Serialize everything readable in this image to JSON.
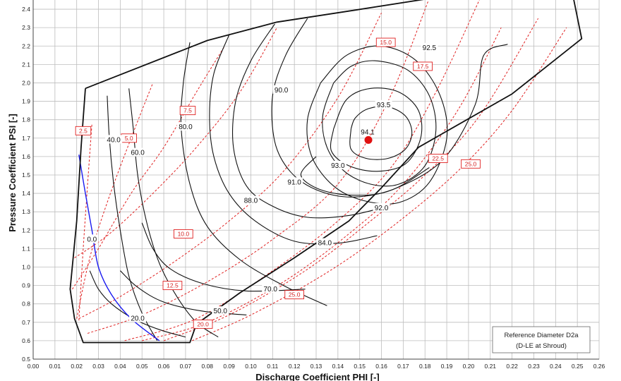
{
  "chart_data": {
    "type": "line",
    "title": "",
    "xlabel": "Discharge Coefficient PHI [-]",
    "ylabel": "Pressure Coefficient PSI [-]",
    "xlim": [
      0.0,
      0.26
    ],
    "ylim": [
      0.5,
      2.45
    ],
    "grid": true,
    "x_ticks": [
      "0.00",
      "0.01",
      "0.02",
      "0.03",
      "0.04",
      "0.05",
      "0.06",
      "0.07",
      "0.08",
      "0.09",
      "0.10",
      "0.11",
      "0.12",
      "0.13",
      "0.14",
      "0.15",
      "0.16",
      "0.17",
      "0.18",
      "0.19",
      "0.20",
      "0.21",
      "0.22",
      "0.23",
      "0.24",
      "0.25",
      "0.26"
    ],
    "y_ticks": [
      "0.5",
      "0.6",
      "0.7",
      "0.8",
      "0.9",
      "1.0",
      "1.1",
      "1.2",
      "1.3",
      "1.4",
      "1.5",
      "1.6",
      "1.7",
      "1.8",
      "1.9",
      "2.0",
      "2.1",
      "2.2",
      "2.3",
      "2.4"
    ],
    "colors": {
      "efficiency": "#111111",
      "speedline": "#e02020",
      "zero_line": "#1a1af0",
      "peak": "#e01010"
    },
    "boundary": [
      [
        0.024,
        1.97
      ],
      [
        0.08,
        2.23
      ],
      [
        0.112,
        2.33
      ],
      [
        0.145,
        2.39
      ],
      [
        0.183,
        2.46
      ],
      [
        0.247,
        2.53
      ],
      [
        0.252,
        2.24
      ],
      [
        0.22,
        1.94
      ],
      [
        0.177,
        1.65
      ],
      [
        0.16,
        1.43
      ],
      [
        0.145,
        1.25
      ],
      [
        0.12,
        1.05
      ],
      [
        0.095,
        0.86
      ],
      [
        0.075,
        0.69
      ],
      [
        0.072,
        0.59
      ],
      [
        0.023,
        0.59
      ],
      [
        0.019,
        0.72
      ],
      [
        0.017,
        0.88
      ],
      [
        0.02,
        1.25
      ],
      [
        0.022,
        1.65
      ],
      [
        0.024,
        1.97
      ]
    ],
    "peak": {
      "x": 0.154,
      "y": 1.69,
      "label": "94.1"
    },
    "efficiency_contours": [
      {
        "label": "40.0",
        "lx": 0.037,
        "ly": 1.69,
        "points": [
          [
            0.034,
            1.93
          ],
          [
            0.035,
            1.7
          ],
          [
            0.037,
            1.45
          ],
          [
            0.04,
            1.2
          ],
          [
            0.044,
            0.95
          ],
          [
            0.05,
            0.75
          ],
          [
            0.057,
            0.6
          ]
        ]
      },
      {
        "label": "60.0",
        "lx": 0.048,
        "ly": 1.62,
        "points": [
          [
            0.044,
            1.97
          ],
          [
            0.046,
            1.75
          ],
          [
            0.048,
            1.5
          ],
          [
            0.052,
            1.25
          ],
          [
            0.058,
            1.02
          ],
          [
            0.066,
            0.84
          ],
          [
            0.075,
            0.7
          ],
          [
            0.085,
            0.62
          ]
        ]
      },
      {
        "label": "80.0",
        "lx": 0.07,
        "ly": 1.76,
        "points": [
          [
            0.072,
            2.22
          ],
          [
            0.069,
            2.0
          ],
          [
            0.068,
            1.75
          ],
          [
            0.072,
            1.45
          ],
          [
            0.08,
            1.22
          ],
          [
            0.095,
            1.04
          ],
          [
            0.115,
            0.9
          ],
          [
            0.135,
            0.79
          ]
        ]
      },
      {
        "label": "84.0",
        "lx": 0.134,
        "ly": 1.13,
        "points": [
          [
            0.09,
            2.26
          ],
          [
            0.083,
            2.05
          ],
          [
            0.081,
            1.82
          ],
          [
            0.083,
            1.6
          ],
          [
            0.09,
            1.4
          ],
          [
            0.102,
            1.25
          ],
          [
            0.12,
            1.14
          ],
          [
            0.14,
            1.13
          ],
          [
            0.158,
            1.17
          ]
        ]
      },
      {
        "label": "88.0",
        "lx": 0.1,
        "ly": 1.36,
        "points": [
          [
            0.111,
            2.32
          ],
          [
            0.1,
            2.12
          ],
          [
            0.093,
            1.9
          ],
          [
            0.092,
            1.65
          ],
          [
            0.098,
            1.44
          ],
          [
            0.11,
            1.33
          ],
          [
            0.126,
            1.27
          ],
          [
            0.145,
            1.28
          ],
          [
            0.163,
            1.33
          ]
        ]
      },
      {
        "label": "90.0",
        "lx": 0.114,
        "ly": 1.96,
        "points": [
          [
            0.126,
            2.35
          ],
          [
            0.116,
            2.15
          ],
          [
            0.11,
            1.93
          ],
          [
            0.111,
            1.68
          ],
          [
            0.118,
            1.52
          ],
          [
            0.13,
            1.42
          ],
          [
            0.146,
            1.38
          ],
          [
            0.165,
            1.42
          ],
          [
            0.182,
            1.54
          ]
        ]
      },
      {
        "label": "91.0",
        "lx": 0.12,
        "ly": 1.46,
        "points": [
          [
            0.13,
            1.6
          ],
          [
            0.123,
            1.5
          ],
          [
            0.132,
            1.42
          ],
          [
            0.148,
            1.39
          ],
          [
            0.165,
            1.42
          ],
          [
            0.188,
            1.58
          ],
          [
            0.203,
            1.88
          ],
          [
            0.207,
            2.15
          ],
          [
            0.218,
            2.21
          ]
        ]
      },
      {
        "label": "92.0",
        "lx": 0.16,
        "ly": 1.32,
        "points": [
          [
            0.132,
            2.0
          ],
          [
            0.126,
            1.8
          ],
          [
            0.128,
            1.6
          ],
          [
            0.138,
            1.44
          ],
          [
            0.152,
            1.36
          ],
          [
            0.168,
            1.35
          ],
          [
            0.182,
            1.46
          ],
          [
            0.19,
            1.7
          ],
          [
            0.187,
            1.93
          ],
          [
            0.176,
            2.12
          ],
          [
            0.16,
            2.2
          ],
          [
            0.144,
            2.15
          ],
          [
            0.132,
            2.0
          ]
        ]
      },
      {
        "label": "92.5",
        "lx": 0.182,
        "ly": 2.19,
        "points": [
          [
            0.138,
            2.0
          ],
          [
            0.133,
            1.82
          ],
          [
            0.135,
            1.65
          ],
          [
            0.143,
            1.52
          ],
          [
            0.155,
            1.45
          ],
          [
            0.168,
            1.45
          ],
          [
            0.18,
            1.55
          ],
          [
            0.185,
            1.74
          ],
          [
            0.182,
            1.93
          ],
          [
            0.172,
            2.07
          ],
          [
            0.157,
            2.12
          ],
          [
            0.146,
            2.09
          ],
          [
            0.138,
            2.0
          ]
        ]
      },
      {
        "label": "93.0",
        "lx": 0.14,
        "ly": 1.55,
        "points": [
          [
            0.138,
            1.75
          ],
          [
            0.137,
            1.63
          ],
          [
            0.145,
            1.55
          ],
          [
            0.158,
            1.52
          ],
          [
            0.171,
            1.56
          ],
          [
            0.178,
            1.7
          ],
          [
            0.177,
            1.85
          ],
          [
            0.168,
            1.95
          ],
          [
            0.155,
            1.97
          ],
          [
            0.144,
            1.91
          ],
          [
            0.138,
            1.75
          ]
        ]
      },
      {
        "label": "93.5",
        "lx": 0.161,
        "ly": 1.88,
        "points": [
          [
            0.146,
            1.75
          ],
          [
            0.146,
            1.64
          ],
          [
            0.153,
            1.59
          ],
          [
            0.163,
            1.59
          ],
          [
            0.171,
            1.64
          ],
          [
            0.174,
            1.73
          ],
          [
            0.171,
            1.82
          ],
          [
            0.163,
            1.87
          ],
          [
            0.154,
            1.86
          ],
          [
            0.148,
            1.81
          ],
          [
            0.146,
            1.75
          ]
        ]
      },
      {
        "label": "70.0",
        "lx": 0.109,
        "ly": 0.88,
        "points": [
          [
            0.05,
            1.24
          ],
          [
            0.055,
            1.1
          ],
          [
            0.063,
            0.99
          ],
          [
            0.078,
            0.91
          ],
          [
            0.098,
            0.87
          ],
          [
            0.125,
            0.88
          ]
        ]
      },
      {
        "label": "50.0",
        "lx": 0.086,
        "ly": 0.76,
        "points": [
          [
            0.04,
            0.98
          ],
          [
            0.048,
            0.89
          ],
          [
            0.06,
            0.81
          ],
          [
            0.078,
            0.76
          ],
          [
            0.098,
            0.74
          ]
        ]
      },
      {
        "label": "20.0",
        "lx": 0.048,
        "ly": 0.72,
        "points": [
          [
            0.026,
            0.98
          ],
          [
            0.03,
            0.88
          ],
          [
            0.036,
            0.8
          ],
          [
            0.046,
            0.72
          ],
          [
            0.058,
            0.66
          ],
          [
            0.07,
            0.62
          ]
        ]
      }
    ],
    "zero_contour": {
      "label": "0.0",
      "lx": 0.027,
      "ly": 1.15,
      "points": [
        [
          0.021,
          1.61
        ],
        [
          0.024,
          1.4
        ],
        [
          0.027,
          1.2
        ],
        [
          0.03,
          1.0
        ],
        [
          0.036,
          0.85
        ],
        [
          0.045,
          0.72
        ],
        [
          0.058,
          0.6
        ]
      ]
    },
    "speed_lines": [
      {
        "label": "2.5",
        "lx": 0.023,
        "ly": 1.74,
        "points": [
          [
            0.021,
            0.71
          ],
          [
            0.023,
            1.1
          ],
          [
            0.025,
            1.45
          ],
          [
            0.027,
            1.78
          ]
        ]
      },
      {
        "label": "5.0",
        "lx": 0.044,
        "ly": 1.7,
        "points": [
          [
            0.02,
            0.72
          ],
          [
            0.026,
            1.05
          ],
          [
            0.034,
            1.35
          ],
          [
            0.045,
            1.7
          ],
          [
            0.055,
            2.0
          ]
        ]
      },
      {
        "label": "7.5",
        "lx": 0.071,
        "ly": 1.85,
        "points": [
          [
            0.018,
            0.88
          ],
          [
            0.03,
            1.1
          ],
          [
            0.045,
            1.4
          ],
          [
            0.06,
            1.65
          ],
          [
            0.075,
            1.95
          ],
          [
            0.088,
            2.2
          ]
        ]
      },
      {
        "label": "10.0",
        "lx": 0.069,
        "ly": 1.18,
        "points": [
          [
            0.019,
            1.05
          ],
          [
            0.035,
            1.18
          ],
          [
            0.055,
            1.4
          ],
          [
            0.075,
            1.65
          ],
          [
            0.095,
            1.95
          ],
          [
            0.112,
            2.3
          ]
        ]
      },
      {
        "label": "12.5",
        "lx": 0.064,
        "ly": 0.9,
        "points": [
          [
            0.021,
            0.72
          ],
          [
            0.04,
            0.84
          ],
          [
            0.065,
            1.03
          ],
          [
            0.09,
            1.25
          ],
          [
            0.115,
            1.52
          ],
          [
            0.14,
            1.92
          ],
          [
            0.16,
            2.38
          ]
        ]
      },
      {
        "label": "15.0",
        "lx": 0.162,
        "ly": 2.22,
        "points": [
          [
            0.025,
            0.64
          ],
          [
            0.05,
            0.74
          ],
          [
            0.08,
            0.92
          ],
          [
            0.11,
            1.15
          ],
          [
            0.14,
            1.45
          ],
          [
            0.163,
            1.9
          ],
          [
            0.182,
            2.46
          ]
        ]
      },
      {
        "label": "17.5",
        "lx": 0.179,
        "ly": 2.09,
        "points": [
          [
            0.042,
            0.6
          ],
          [
            0.075,
            0.72
          ],
          [
            0.11,
            0.98
          ],
          [
            0.14,
            1.25
          ],
          [
            0.165,
            1.55
          ],
          [
            0.185,
            1.95
          ],
          [
            0.205,
            2.45
          ]
        ]
      },
      {
        "label": "20.0",
        "lx": 0.078,
        "ly": 0.69,
        "points": [
          [
            0.05,
            0.6
          ],
          [
            0.08,
            0.7
          ],
          [
            0.115,
            0.92
          ],
          [
            0.145,
            1.18
          ],
          [
            0.17,
            1.45
          ],
          [
            0.195,
            1.85
          ],
          [
            0.215,
            2.3
          ]
        ]
      },
      {
        "label": "22.5",
        "lx": 0.186,
        "ly": 1.59,
        "points": [
          [
            0.06,
            0.6
          ],
          [
            0.09,
            0.74
          ],
          [
            0.125,
            0.98
          ],
          [
            0.155,
            1.25
          ],
          [
            0.18,
            1.5
          ],
          [
            0.205,
            1.82
          ],
          [
            0.232,
            2.35
          ]
        ]
      },
      {
        "label": "25.0",
        "lx": 0.12,
        "ly": 0.85,
        "points": [
          [
            0.073,
            0.6
          ],
          [
            0.1,
            0.74
          ],
          [
            0.135,
            0.97
          ],
          [
            0.165,
            1.22
          ],
          [
            0.195,
            1.52
          ],
          [
            0.22,
            1.85
          ],
          [
            0.245,
            2.3
          ]
        ]
      },
      {
        "label": "25.0",
        "lx": 0.201,
        "ly": 1.56,
        "points": []
      }
    ]
  },
  "reference_box": {
    "line1": "Reference Diameter D2a",
    "line2": "(D-LE at Shroud)"
  }
}
